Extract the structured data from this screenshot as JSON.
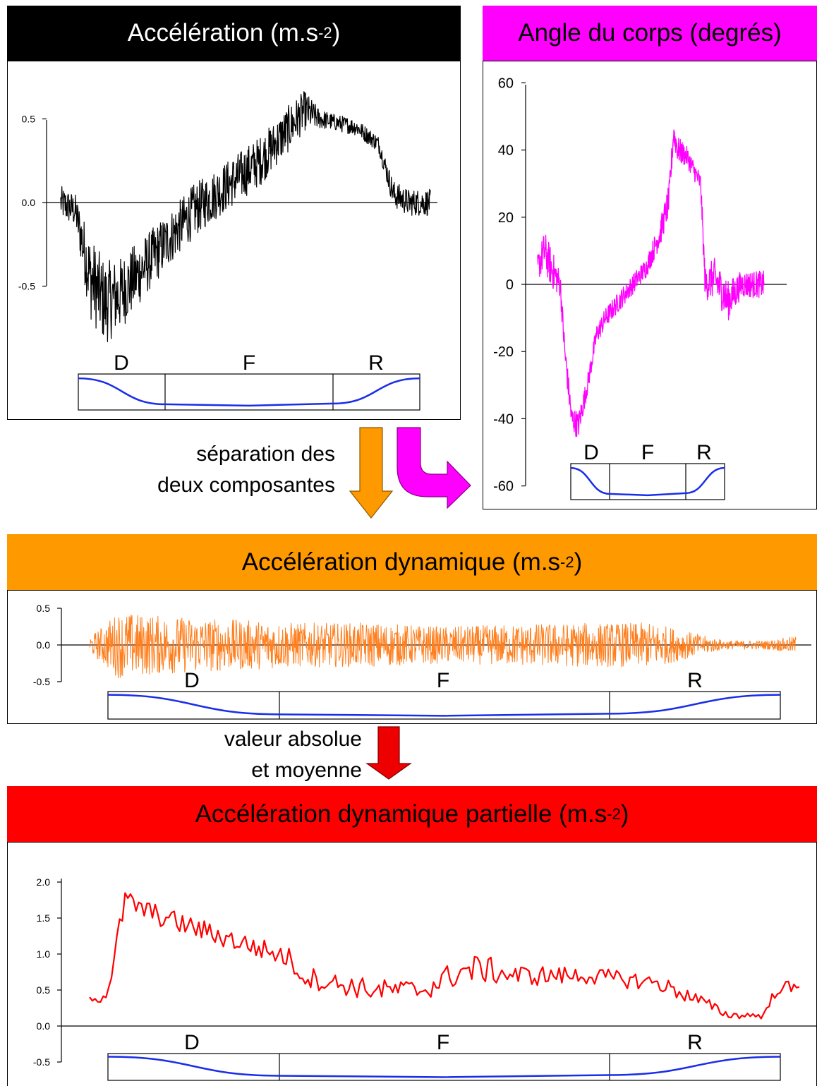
{
  "headers": {
    "accel": {
      "text": "Accélération (m.s",
      "exp": "-2",
      "close": ")",
      "bg": "#000000",
      "fg": "#ffffff"
    },
    "angle": {
      "text": "Angle du corps (degrés)",
      "bg": "#ff00ff",
      "fg": "#000000"
    },
    "dyn": {
      "text": "Accélération dynamique (m.s",
      "exp": "-2",
      "close": ")",
      "bg": "#ff9900",
      "fg": "#000000"
    },
    "partial": {
      "text": "Accélération dynamique partielle (m.s",
      "exp": "-2",
      "close": ")",
      "bg": "#ff0000",
      "fg": "#000000"
    }
  },
  "captions": {
    "separation": [
      "séparation des",
      "deux composantes"
    ],
    "absolute": [
      "valeur absolue",
      "et moyenne"
    ]
  },
  "phase_labels": [
    "D",
    "F",
    "R"
  ],
  "colors": {
    "accel_trace": "#000000",
    "angle_trace": "#ff00ff",
    "dyn_trace": "#ff7f1e",
    "partial_trace": "#ff0000",
    "dive_profile": "#1a2ee8",
    "orange_arrow": "#ff9900",
    "magenta_arrow": "#ff00ff",
    "red_arrow": "#ee0000"
  },
  "chart_data": [
    {
      "type": "line",
      "name": "accel",
      "title": "Accélération (m.s-2)",
      "yticks": [
        "0.5",
        "0.0",
        "-0.5"
      ],
      "ylim": [
        -0.9,
        0.8
      ],
      "envelope": {
        "x": [
          0,
          0.04,
          0.08,
          0.12,
          0.16,
          0.2,
          0.24,
          0.3,
          0.36,
          0.42,
          0.48,
          0.54,
          0.58,
          0.62,
          0.66,
          0.7,
          0.74,
          0.8,
          0.86,
          0.9,
          0.94,
          1.0
        ],
        "y": [
          0.0,
          -0.05,
          -0.45,
          -0.6,
          -0.55,
          -0.45,
          -0.35,
          -0.2,
          -0.05,
          0.05,
          0.15,
          0.25,
          0.35,
          0.45,
          0.55,
          0.5,
          0.48,
          0.45,
          0.35,
          0.05,
          0.0,
          0.0
        ],
        "amplitude": [
          0.1,
          0.1,
          0.25,
          0.25,
          0.22,
          0.2,
          0.18,
          0.16,
          0.16,
          0.15,
          0.15,
          0.15,
          0.14,
          0.14,
          0.12,
          0.06,
          0.05,
          0.05,
          0.05,
          0.08,
          0.08,
          0.08
        ]
      }
    },
    {
      "type": "line",
      "name": "angle",
      "title": "Angle du corps (degrés)",
      "yticks": [
        "60",
        "40",
        "20",
        "0",
        "-20",
        "-40",
        "-60"
      ],
      "ylim": [
        -60,
        60
      ],
      "envelope": {
        "x": [
          0,
          0.03,
          0.06,
          0.1,
          0.12,
          0.15,
          0.18,
          0.22,
          0.26,
          0.3,
          0.36,
          0.42,
          0.48,
          0.54,
          0.58,
          0.6,
          0.62,
          0.66,
          0.72,
          0.74,
          0.78,
          0.84,
          0.9,
          0.95,
          1.0
        ],
        "y": [
          5,
          10,
          5,
          0,
          -20,
          -40,
          -42,
          -30,
          -15,
          -10,
          -5,
          0,
          5,
          15,
          25,
          45,
          40,
          38,
          30,
          0,
          2,
          -5,
          0,
          0,
          0
        ],
        "amplitude": [
          4,
          6,
          6,
          4,
          4,
          4,
          4,
          3,
          3,
          3,
          3,
          3,
          3,
          4,
          5,
          4,
          4,
          3,
          3,
          5,
          6,
          6,
          4,
          4,
          4
        ]
      }
    },
    {
      "type": "line",
      "name": "dynamic",
      "title": "Accélération dynamique (m.s-2)",
      "yticks": [
        "0.5",
        "0.0",
        "-0.5"
      ],
      "ylim": [
        -0.55,
        0.55
      ],
      "envelope": {
        "x": [
          0,
          0.04,
          0.1,
          0.2,
          0.3,
          0.4,
          0.5,
          0.6,
          0.7,
          0.8,
          0.86,
          0.9,
          0.96,
          1.0
        ],
        "y": [
          0,
          0,
          0,
          0,
          0,
          0,
          0,
          0,
          0,
          0,
          0,
          0,
          0,
          0
        ],
        "amplitude": [
          0.1,
          0.45,
          0.4,
          0.35,
          0.3,
          0.3,
          0.25,
          0.28,
          0.3,
          0.3,
          0.15,
          0.06,
          0.06,
          0.12
        ]
      }
    },
    {
      "type": "line",
      "name": "partial",
      "title": "Accélération dynamique partielle (m.s-2)",
      "yticks": [
        "2.0",
        "1.5",
        "1.0",
        "0.5",
        "0.0",
        "-0.5"
      ],
      "ylim": [
        -0.5,
        2.0
      ],
      "envelope": {
        "x": [
          0,
          0.02,
          0.03,
          0.05,
          0.08,
          0.12,
          0.2,
          0.28,
          0.3,
          0.34,
          0.4,
          0.47,
          0.52,
          0.55,
          0.6,
          0.7,
          0.8,
          0.86,
          0.9,
          0.95,
          0.97,
          1.0
        ],
        "y": [
          0.4,
          0.4,
          0.7,
          1.75,
          1.6,
          1.45,
          1.2,
          0.95,
          0.7,
          0.6,
          0.5,
          0.5,
          0.75,
          0.8,
          0.7,
          0.7,
          0.6,
          0.35,
          0.15,
          0.15,
          0.55,
          0.5
        ],
        "amplitude": [
          0.05,
          0.1,
          0.2,
          0.15,
          0.15,
          0.15,
          0.15,
          0.15,
          0.15,
          0.15,
          0.15,
          0.15,
          0.2,
          0.2,
          0.15,
          0.12,
          0.12,
          0.1,
          0.05,
          0.05,
          0.1,
          0.1
        ]
      }
    }
  ]
}
